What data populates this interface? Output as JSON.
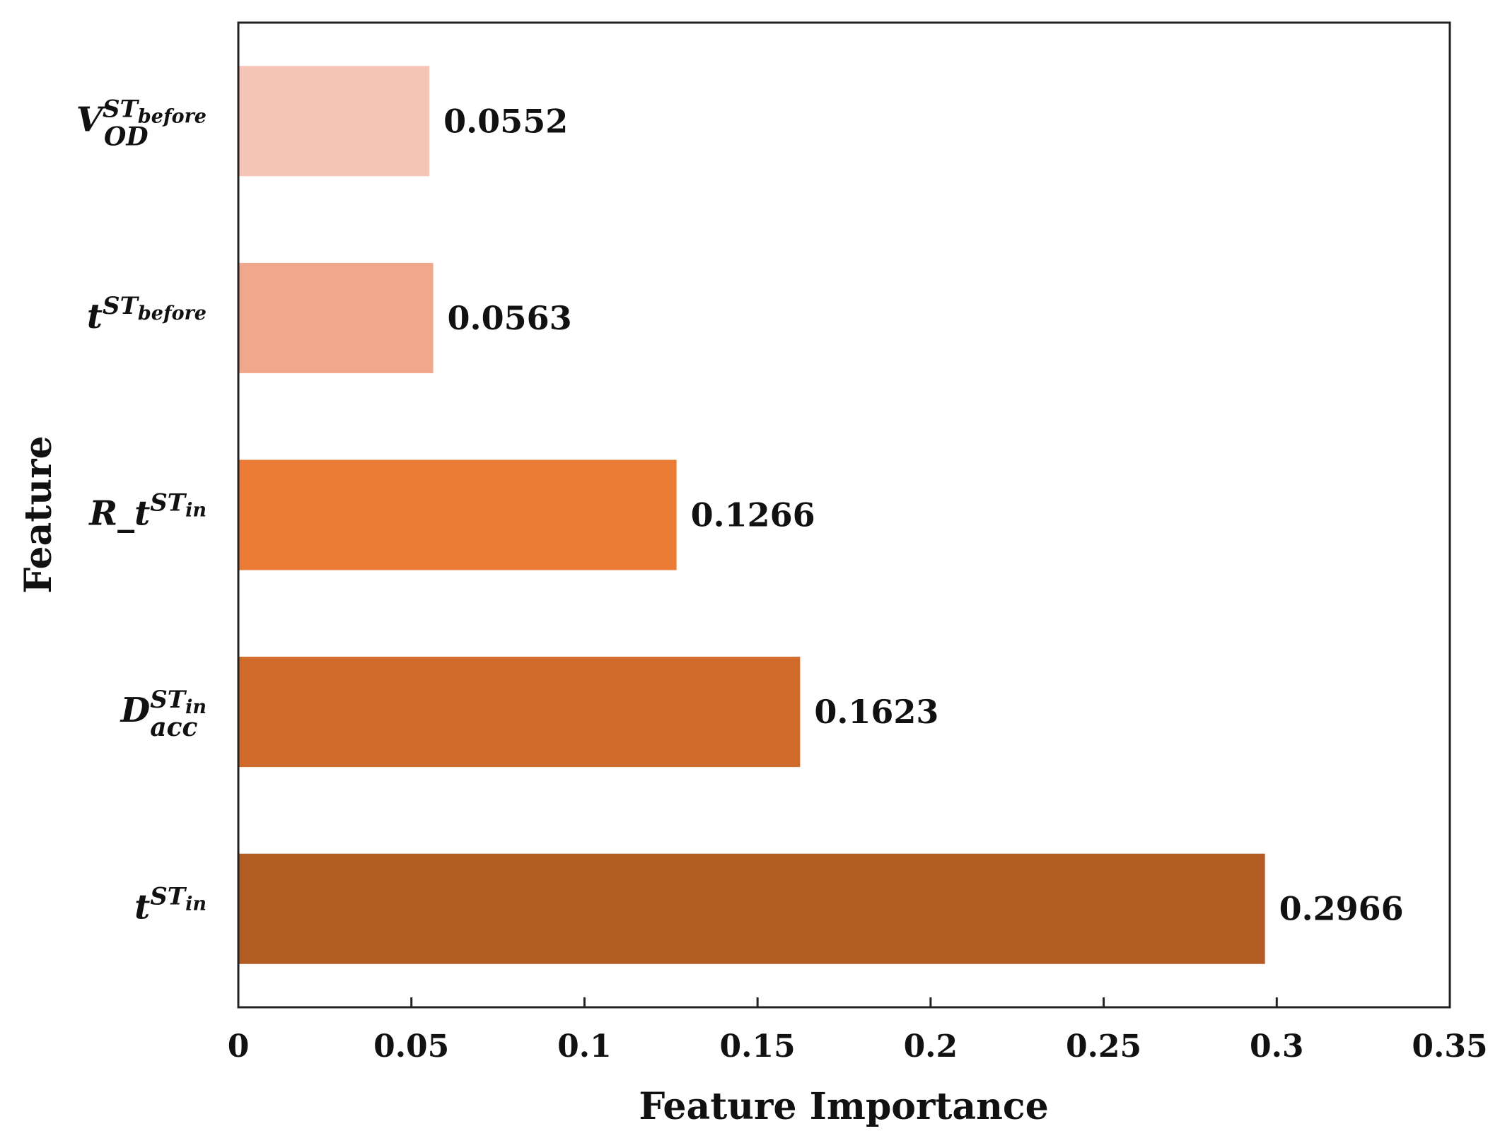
{
  "chart_data": {
    "type": "bar",
    "orientation": "horizontal",
    "xlabel": "Feature Importance",
    "ylabel": "Feature",
    "xlim": [
      0,
      0.35
    ],
    "x_ticks": [
      "0",
      "0.05",
      "0.1",
      "0.15",
      "0.2",
      "0.25",
      "0.3",
      "0.35"
    ],
    "grid": false,
    "categories": [
      {
        "base": "V",
        "sup": "ST",
        "supsub": "before",
        "sub": "OD"
      },
      {
        "base": "t",
        "sup": "ST",
        "supsub": "before",
        "sub": ""
      },
      {
        "base": "R_t",
        "sup": "ST",
        "supsub": "in",
        "sub": ""
      },
      {
        "base": "D",
        "sup": "ST",
        "supsub": "in",
        "sub": "acc"
      },
      {
        "base": "t",
        "sup": "ST",
        "supsub": "in",
        "sub": ""
      }
    ],
    "values": [
      0.0552,
      0.0563,
      0.1266,
      0.1623,
      0.2966
    ],
    "value_labels": [
      "0.0552",
      "0.0563",
      "0.1266",
      "0.1623",
      "0.2966"
    ],
    "colors": [
      "#f5c6b7",
      "#f1a78c",
      "#ec7c35",
      "#d06b2b",
      "#b25c24"
    ]
  }
}
